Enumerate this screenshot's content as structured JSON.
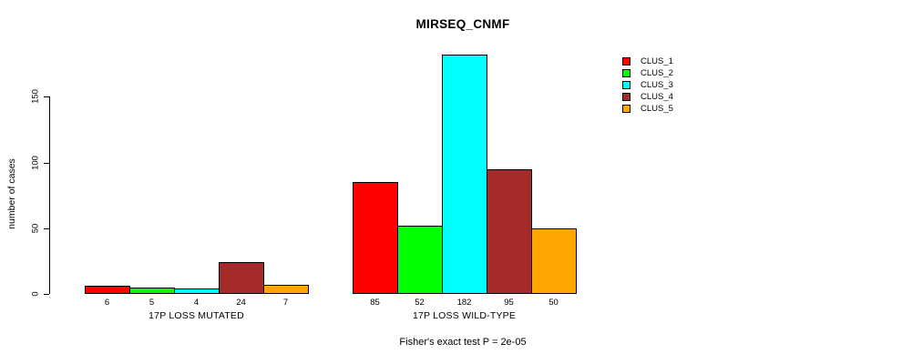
{
  "figure": {
    "title": "MIRSEQ_CNMF",
    "footer": "Fisher's exact test P = 2e-05"
  },
  "chart_data": {
    "type": "bar",
    "title": "MIRSEQ_CNMF",
    "xlabel": "",
    "ylabel": "number of cases",
    "yticks": [
      0,
      50,
      100,
      150
    ],
    "ylim": [
      0,
      190
    ],
    "grid": false,
    "legend_position": "right",
    "legend_entries": [
      "CLUS_1",
      "CLUS_2",
      "CLUS_3",
      "CLUS_4",
      "CLUS_5"
    ],
    "colors": [
      "#ff0000",
      "#00ff00",
      "#00ffff",
      "#a52a2a",
      "#ffa500"
    ],
    "bar_border_color": "#000000",
    "background_color": "#ffffff",
    "groups": [
      {
        "label": "17P LOSS MUTATED",
        "values": [
          6,
          5,
          4,
          24,
          7
        ]
      },
      {
        "label": "17P LOSS WILD-TYPE",
        "values": [
          85,
          52,
          182,
          95,
          50
        ]
      }
    ],
    "annotation": "Fisher's exact test P = 2e-05"
  }
}
